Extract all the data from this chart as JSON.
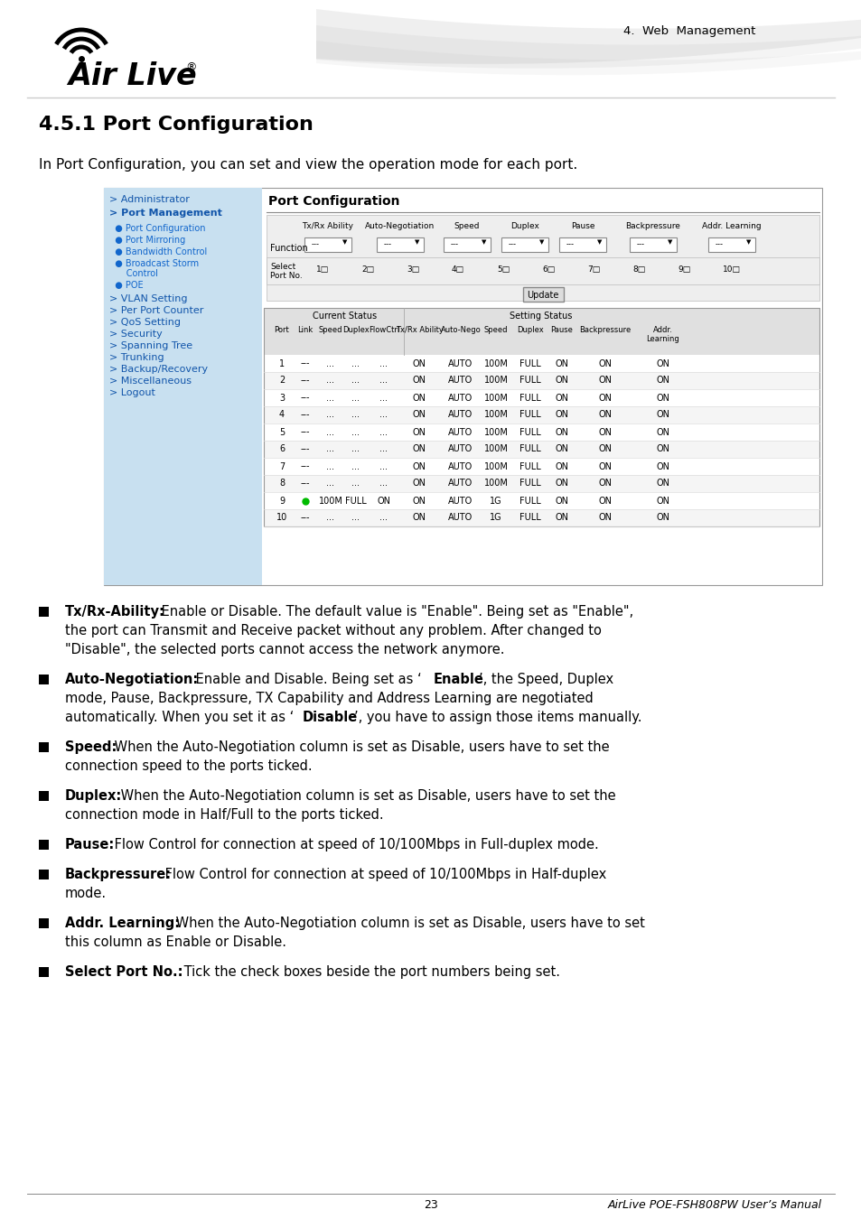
{
  "page_title": "4.  Web  Management",
  "section_title": "4.5.1 Port Configuration",
  "intro_text": "In Port Configuration, you can set and view the operation mode for each port.",
  "port_data": [
    [
      1,
      "---",
      "...",
      "...",
      "...",
      "ON",
      "AUTO",
      "100M",
      "FULL",
      "ON",
      "ON",
      "ON"
    ],
    [
      2,
      "---",
      "...",
      "...",
      "...",
      "ON",
      "AUTO",
      "100M",
      "FULL",
      "ON",
      "ON",
      "ON"
    ],
    [
      3,
      "---",
      "...",
      "...",
      "...",
      "ON",
      "AUTO",
      "100M",
      "FULL",
      "ON",
      "ON",
      "ON"
    ],
    [
      4,
      "---",
      "...",
      "...",
      "...",
      "ON",
      "AUTO",
      "100M",
      "FULL",
      "ON",
      "ON",
      "ON"
    ],
    [
      5,
      "---",
      "...",
      "...",
      "...",
      "ON",
      "AUTO",
      "100M",
      "FULL",
      "ON",
      "ON",
      "ON"
    ],
    [
      6,
      "---",
      "...",
      "...",
      "...",
      "ON",
      "AUTO",
      "100M",
      "FULL",
      "ON",
      "ON",
      "ON"
    ],
    [
      7,
      "---",
      "...",
      "...",
      "...",
      "ON",
      "AUTO",
      "100M",
      "FULL",
      "ON",
      "ON",
      "ON"
    ],
    [
      8,
      "---",
      "...",
      "...",
      "...",
      "ON",
      "AUTO",
      "100M",
      "FULL",
      "ON",
      "ON",
      "ON"
    ],
    [
      9,
      "GREEN",
      "100M",
      "FULL",
      "ON",
      "ON",
      "AUTO",
      "1G",
      "FULL",
      "ON",
      "ON",
      "ON"
    ],
    [
      10,
      "---",
      "...",
      "...",
      "...",
      "ON",
      "AUTO",
      "1G",
      "FULL",
      "ON",
      "ON",
      "ON"
    ]
  ],
  "footer_page": "23",
  "footer_right": "AirLive POE-FSH808PW User’s Manual",
  "bg_color": "#ffffff",
  "sidebar_bg": "#c8e0f0",
  "table_header_bg": "#e0e0e0",
  "screenshot_border": "#999999"
}
